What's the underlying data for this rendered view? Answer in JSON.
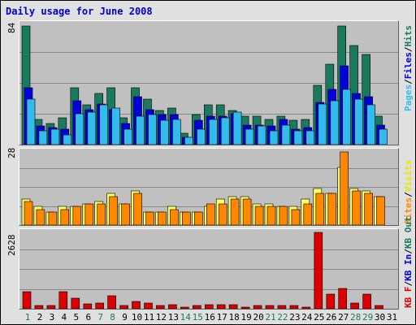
{
  "window": {
    "title": "Daily usage for June 2008"
  },
  "colors": {
    "hits": "#1a7a5e",
    "files": "#0000dd",
    "pages": "#33bbee",
    "visits": "#ffff66",
    "sites": "#ff8800",
    "kbin": "#1a7a5e",
    "kbout": "#0000dd",
    "kbf": "#dd0000",
    "panel_bg": "#c0c0c0",
    "grid": "#888888",
    "day_weekend": "#1a7a5e",
    "day_weekday": "#000000"
  },
  "chart_data": [
    {
      "type": "bar",
      "title": "Daily usage for June 2008",
      "ymax_label": "84",
      "ylim": [
        0,
        84
      ],
      "grid": true,
      "categories": [
        "1",
        "2",
        "3",
        "4",
        "5",
        "6",
        "7",
        "8",
        "9",
        "10",
        "11",
        "12",
        "13",
        "14",
        "15",
        "16",
        "17",
        "18",
        "19",
        "20",
        "21",
        "22",
        "23",
        "24",
        "25",
        "26",
        "27",
        "28",
        "29",
        "30",
        "31"
      ],
      "series": [
        {
          "name": "Hits",
          "values": [
            84,
            18,
            15,
            19,
            40,
            28,
            36,
            40,
            19,
            40,
            32,
            24,
            26,
            8,
            21,
            28,
            28,
            24,
            20,
            20,
            18,
            20,
            17,
            18,
            42,
            57,
            84,
            70,
            64,
            20,
            0
          ]
        },
        {
          "name": "Files",
          "values": [
            40,
            13,
            12,
            11,
            31,
            25,
            29,
            25,
            15,
            34,
            25,
            21,
            21,
            5,
            17,
            20,
            20,
            22,
            14,
            14,
            13,
            18,
            11,
            12,
            30,
            39,
            56,
            36,
            34,
            14,
            0
          ]
        },
        {
          "name": "Pages",
          "values": [
            32,
            10,
            11,
            7,
            22,
            23,
            28,
            26,
            11,
            20,
            21,
            17,
            18,
            5,
            11,
            18,
            19,
            23,
            11,
            13,
            10,
            14,
            10,
            10,
            29,
            31,
            39,
            32,
            28,
            11,
            0
          ]
        }
      ],
      "legend": [
        "Pages",
        "Files",
        "Hits"
      ],
      "legend_placement": "right"
    },
    {
      "type": "bar",
      "ymax_label": "28",
      "ylim": [
        0,
        28
      ],
      "grid": true,
      "categories": [
        "1",
        "2",
        "3",
        "4",
        "5",
        "6",
        "7",
        "8",
        "9",
        "10",
        "11",
        "12",
        "13",
        "14",
        "15",
        "16",
        "17",
        "18",
        "19",
        "20",
        "21",
        "22",
        "23",
        "24",
        "25",
        "26",
        "27",
        "28",
        "29",
        "30",
        "31"
      ],
      "series": [
        {
          "name": "Visits",
          "values": [
            10,
            7,
            5,
            7,
            7,
            8,
            9,
            12,
            8,
            13,
            5,
            5,
            7,
            5,
            5,
            7,
            10,
            11,
            11,
            8,
            8,
            7,
            7,
            10,
            14,
            12,
            22,
            14,
            13,
            11,
            0
          ]
        },
        {
          "name": "Sites",
          "values": [
            9,
            6,
            5,
            6,
            7,
            8,
            8,
            11,
            8,
            12,
            5,
            5,
            6,
            5,
            5,
            8,
            8,
            10,
            10,
            7,
            7,
            7,
            6,
            8,
            12,
            12,
            28,
            13,
            12,
            11,
            0
          ]
        }
      ],
      "legend": [
        "Visits",
        "Sites"
      ],
      "legend_placement": "right"
    },
    {
      "type": "bar",
      "ymax_label": "2628",
      "ylim": [
        0,
        2628
      ],
      "grid": true,
      "categories": [
        "1",
        "2",
        "3",
        "4",
        "5",
        "6",
        "7",
        "8",
        "9",
        "10",
        "11",
        "12",
        "13",
        "14",
        "15",
        "16",
        "17",
        "18",
        "19",
        "20",
        "21",
        "22",
        "23",
        "24",
        "25",
        "26",
        "27",
        "28",
        "29",
        "30",
        "31"
      ],
      "series": [
        {
          "name": "KB In",
          "values": [
            0,
            0,
            0,
            0,
            0,
            0,
            0,
            0,
            0,
            0,
            0,
            0,
            0,
            0,
            0,
            0,
            0,
            0,
            0,
            0,
            0,
            0,
            0,
            0,
            0,
            0,
            0,
            0,
            0,
            0,
            0
          ]
        },
        {
          "name": "KB Out",
          "values": [
            0,
            0,
            0,
            0,
            0,
            0,
            0,
            0,
            0,
            0,
            0,
            0,
            0,
            0,
            0,
            0,
            0,
            0,
            0,
            0,
            0,
            0,
            0,
            0,
            0,
            0,
            0,
            0,
            0,
            0,
            0
          ]
        },
        {
          "name": "KB F",
          "values": [
            600,
            100,
            100,
            600,
            350,
            180,
            200,
            450,
            100,
            250,
            200,
            100,
            150,
            50,
            100,
            150,
            150,
            150,
            50,
            100,
            100,
            100,
            100,
            50,
            2628,
            500,
            700,
            200,
            500,
            100,
            0
          ]
        }
      ],
      "legend": [
        "KB F",
        "KB In",
        "KB Out"
      ],
      "legend_placement": "right"
    }
  ],
  "day_axis": {
    "labels": [
      "1",
      "2",
      "3",
      "4",
      "5",
      "6",
      "7",
      "8",
      "9",
      "10",
      "11",
      "12",
      "13",
      "14",
      "15",
      "16",
      "17",
      "18",
      "19",
      "20",
      "21",
      "22",
      "23",
      "24",
      "25",
      "26",
      "27",
      "28",
      "29",
      "30",
      "31"
    ],
    "weekend": [
      1,
      7,
      8,
      14,
      15,
      21,
      22,
      28,
      29
    ]
  },
  "legend1": {
    "a": "Pages",
    "s1": "/",
    "b": "Files",
    "s2": "/",
    "c": "Hits"
  },
  "legend2": {
    "a": "Sites",
    "s1": "/",
    "b": "Visits"
  },
  "legend3": {
    "a": "KB F",
    "s1": "/",
    "b": "KB In",
    "s2": "/",
    "c": "KB Out"
  }
}
